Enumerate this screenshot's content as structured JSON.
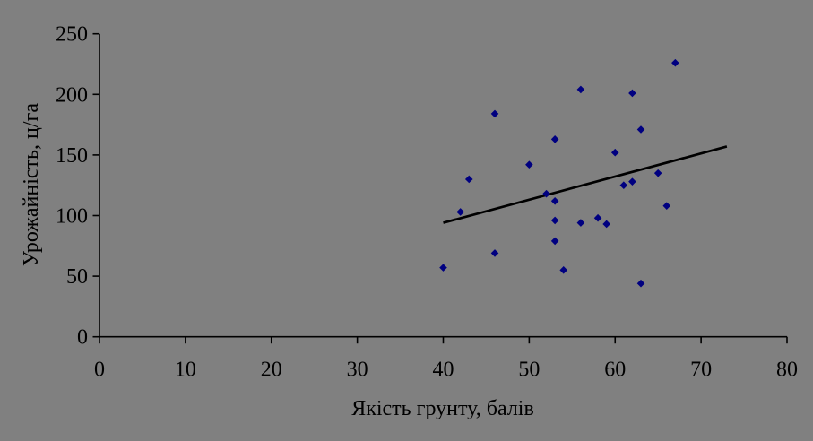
{
  "background_color": "#808080",
  "text_color": "#000000",
  "chart_data": {
    "type": "scatter",
    "title": "",
    "xlabel": "Якість грунту, балів",
    "ylabel": "Урожайність, ц/га",
    "xlim": [
      0,
      80
    ],
    "ylim": [
      0,
      250
    ],
    "x_ticks": [
      0,
      10,
      20,
      30,
      40,
      50,
      60,
      70,
      80
    ],
    "y_ticks": [
      0,
      50,
      100,
      150,
      200,
      250
    ],
    "grid": false,
    "legend": false,
    "marker": {
      "shape": "diamond",
      "color": "#000080"
    },
    "axis_color": "#000000",
    "points": [
      [
        40,
        57
      ],
      [
        42,
        103
      ],
      [
        43,
        130
      ],
      [
        46,
        69
      ],
      [
        46,
        184
      ],
      [
        50,
        142
      ],
      [
        52,
        118
      ],
      [
        53,
        79
      ],
      [
        53,
        96
      ],
      [
        53,
        112
      ],
      [
        53,
        163
      ],
      [
        54,
        55
      ],
      [
        56,
        94
      ],
      [
        56,
        204
      ],
      [
        58,
        98
      ],
      [
        59,
        93
      ],
      [
        60,
        152
      ],
      [
        61,
        125
      ],
      [
        62,
        128
      ],
      [
        62,
        201
      ],
      [
        63,
        44
      ],
      [
        63,
        171
      ],
      [
        65,
        135
      ],
      [
        66,
        108
      ],
      [
        67,
        226
      ]
    ],
    "trendline": {
      "x1": 40,
      "y1": 94,
      "x2": 73,
      "y2": 157,
      "color": "#000000"
    }
  }
}
